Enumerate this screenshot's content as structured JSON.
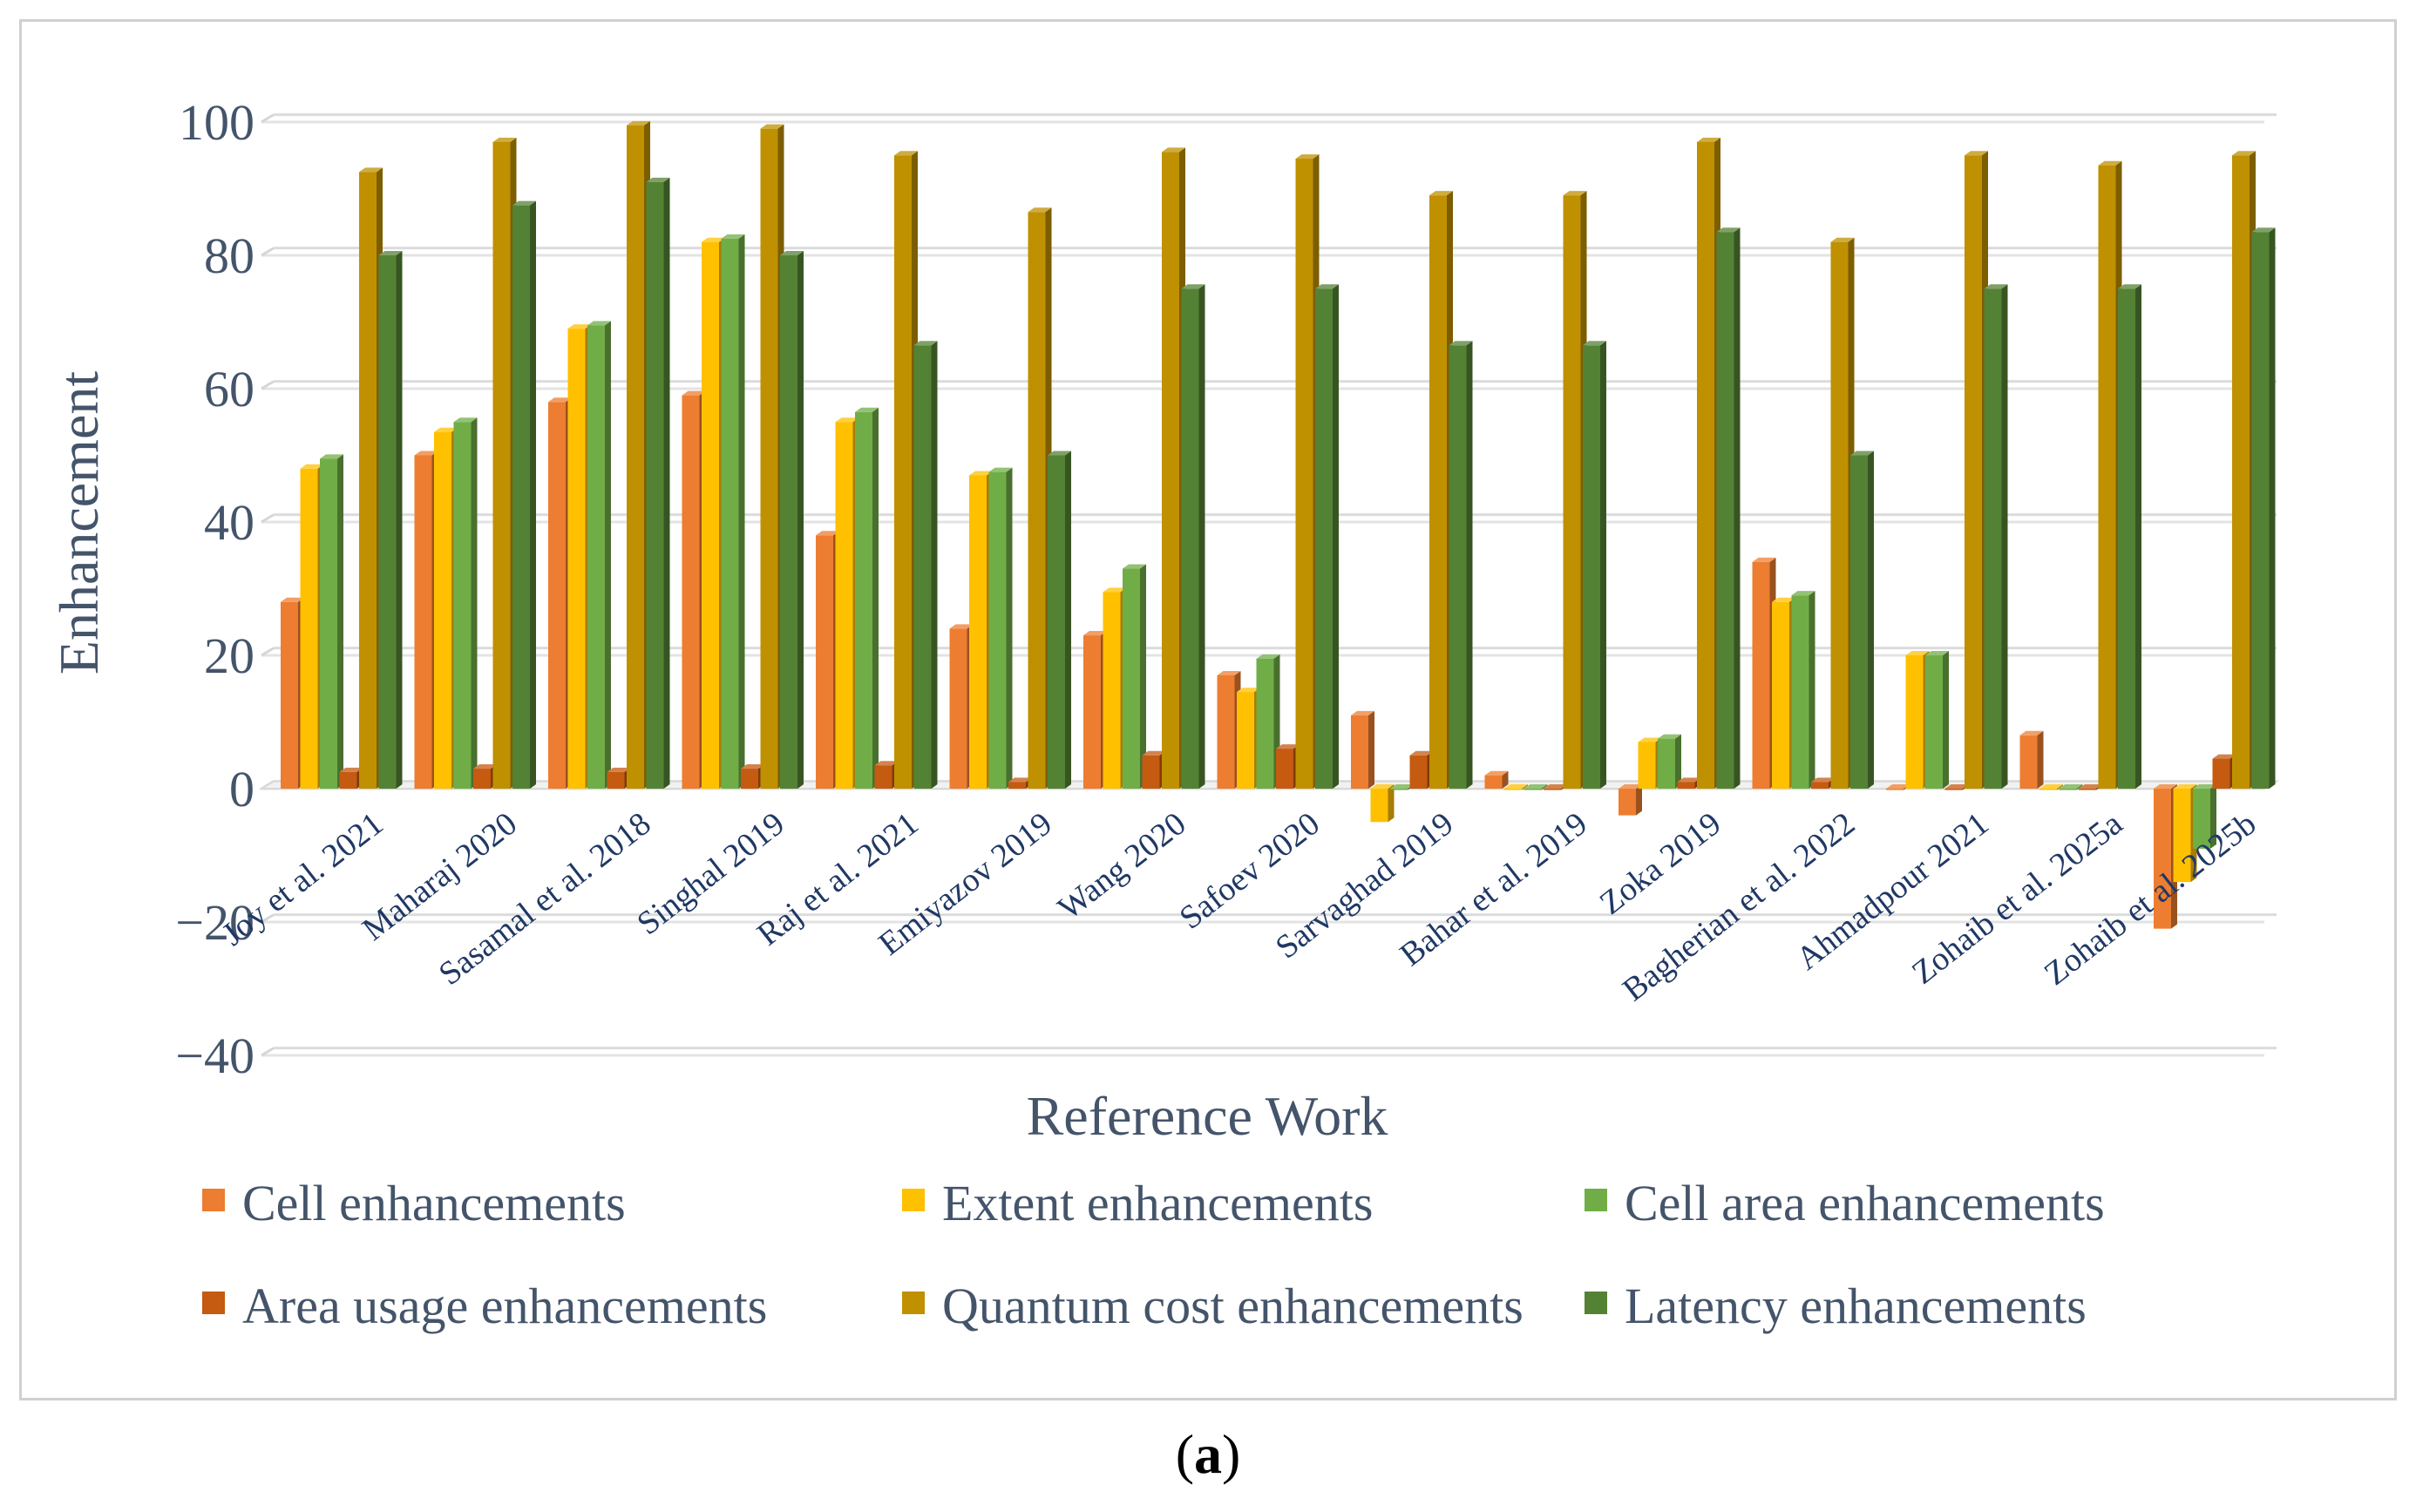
{
  "chart_data": {
    "type": "bar",
    "xlabel": "Reference Work",
    "ylabel": "Enhancement",
    "ylim": [
      -40,
      100
    ],
    "yticks": [
      100,
      80,
      60,
      40,
      20,
      0,
      -20,
      -40
    ],
    "ytick_labels": [
      "100",
      "80",
      "60",
      "40",
      "20",
      "0",
      "−20",
      "−40"
    ],
    "grid": true,
    "legend_position": "bottom",
    "categories": [
      "Joy et al. 2021",
      "Maharaj 2020",
      "Sasamal et al. 2018",
      "Singhal 2019",
      "Raj et al. 2021",
      "Emiyazov 2019",
      "Wang 2020",
      "Safoev 2020",
      "Sarvaghad 2019",
      "Bahar et al. 2019",
      "Zoka 2019",
      "Bagherian et al. 2022",
      "Ahmadpour 2021",
      "Zohaib et al. 2025a",
      "Zohaib et al. 2025b"
    ],
    "series": [
      {
        "name": "Cell enhancements",
        "color": "#ed7d31",
        "values": [
          28,
          50,
          58,
          59,
          38,
          24,
          23,
          17,
          11,
          2,
          -4,
          34,
          0,
          8,
          -21
        ]
      },
      {
        "name": "Extent enhancements",
        "color": "#ffc000",
        "values": [
          48,
          53.5,
          69,
          82,
          55,
          47,
          29.5,
          14.5,
          -5,
          0,
          7,
          28,
          20,
          0,
          -14
        ]
      },
      {
        "name": "Cell area enhancements",
        "color": "#70ad47",
        "values": [
          49.5,
          55,
          69.5,
          82.5,
          56.5,
          47.5,
          33,
          19.5,
          0,
          0,
          7.5,
          29,
          20,
          0,
          -9
        ]
      },
      {
        "name": "Area usage enhancements",
        "color": "#c55a11",
        "values": [
          2.5,
          3,
          2.5,
          3,
          3.5,
          1,
          5,
          6,
          5,
          0,
          1,
          1,
          0,
          0,
          4.5
        ]
      },
      {
        "name": "Quantum cost enhancements",
        "color": "#bf9000",
        "values": [
          92.5,
          97,
          99.5,
          99,
          95,
          86.5,
          95.5,
          94.5,
          89,
          89,
          97,
          82,
          95,
          93.5,
          95
        ]
      },
      {
        "name": "Latency enhancements",
        "color": "#548235",
        "values": [
          80,
          87.5,
          91,
          80,
          66.5,
          50,
          75,
          75,
          66.5,
          66.5,
          83.5,
          50,
          75,
          75,
          83.5
        ]
      }
    ]
  },
  "caption": {
    "label": "a"
  }
}
